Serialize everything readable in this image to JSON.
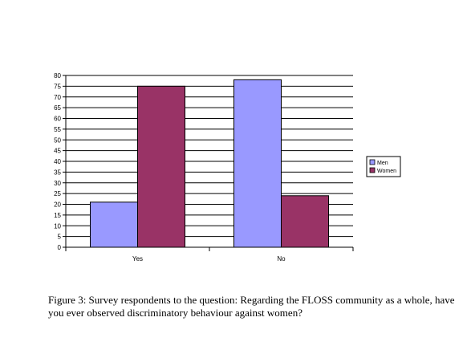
{
  "chart_data": {
    "type": "bar",
    "categories": [
      "Yes",
      "No"
    ],
    "series": [
      {
        "name": "Men",
        "values": [
          21,
          78
        ],
        "color": "#9999ff"
      },
      {
        "name": "Women",
        "values": [
          75,
          24
        ],
        "color": "#993366"
      }
    ],
    "ylim": [
      0,
      80
    ],
    "yticks": [
      0,
      5,
      10,
      15,
      20,
      25,
      30,
      35,
      40,
      45,
      50,
      55,
      60,
      65,
      70,
      75,
      80
    ],
    "grid": true,
    "legend": "right",
    "xlabel": "",
    "ylabel": ""
  },
  "caption": "Figure 3: Survey respondents to the question: Regarding the FLOSS community as a whole, have you ever observed discriminatory behaviour against women?"
}
